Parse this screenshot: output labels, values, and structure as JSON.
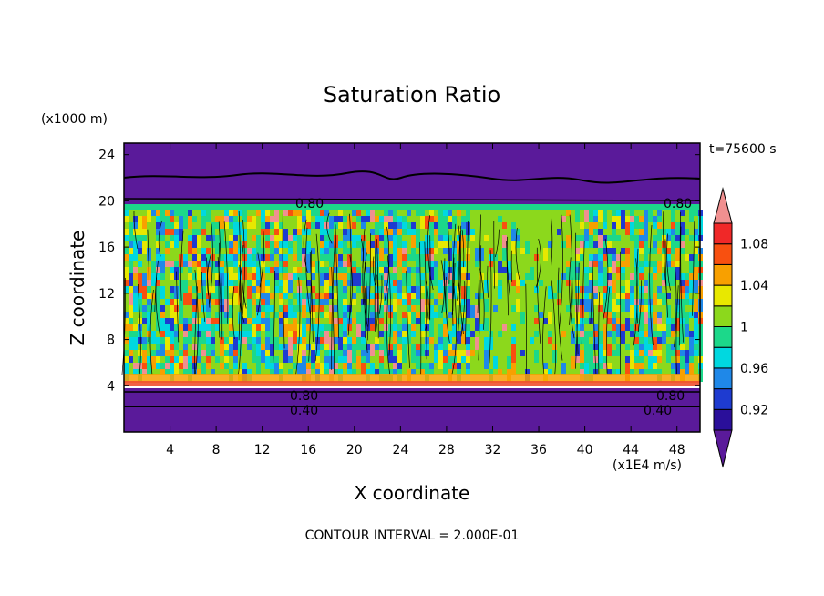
{
  "chart_data": {
    "type": "heatmap",
    "title": "Saturation Ratio",
    "xlabel": "X coordinate",
    "ylabel": "Z coordinate",
    "x_unit": "(x1E4 m/s)",
    "y_unit": "(x1000 m)",
    "time_label": "t=75600 s",
    "footer": "CONTOUR INTERVAL = 2.000E-01",
    "xlim": [
      0,
      50
    ],
    "ylim": [
      0,
      25
    ],
    "x_ticks": [
      "4",
      "8",
      "12",
      "16",
      "20",
      "24",
      "28",
      "32",
      "36",
      "40",
      "44",
      "48"
    ],
    "y_ticks": [
      "4",
      "8",
      "12",
      "16",
      "20",
      "24"
    ],
    "colorbar": {
      "labels": [
        "1.08",
        "1.04",
        "1",
        "0.96",
        "0.92"
      ],
      "colors": [
        "#5a1a9a",
        "#2a0f9a",
        "#1e3bd0",
        "#1f88e8",
        "#00d8e0",
        "#1cd88a",
        "#8cd81c",
        "#e8e800",
        "#f8a000",
        "#f85010",
        "#f02828",
        "#f09090"
      ]
    },
    "contour_labels": [
      "0.80",
      "0.80",
      "0.80",
      "0.80",
      "0.40",
      "0.40"
    ]
  }
}
